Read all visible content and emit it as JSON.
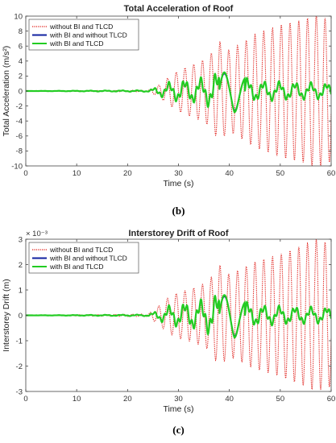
{
  "chart_data": [
    {
      "type": "line",
      "title": "Total Acceleration of Roof",
      "xlabel": "Time (s)",
      "ylabel": "Total Acceleration (m/s²)",
      "xlim": [
        0,
        60
      ],
      "ylim": [
        -10,
        10
      ],
      "x_ticks": [
        "0",
        "10",
        "20",
        "30",
        "40",
        "50",
        "60"
      ],
      "y_ticks": [
        "-10",
        "-8",
        "-6",
        "-4",
        "-2",
        "0",
        "2",
        "4",
        "6",
        "8",
        "10"
      ],
      "grid": false,
      "legend_position": "top-left",
      "caption": "(b)",
      "series": [
        {
          "name": "without BI and TLCD",
          "color": "#e0201b",
          "style": "dotted",
          "envelope": {
            "t": [
              0,
              24,
              26,
              28,
              30,
              32,
              34,
              36,
              38,
              40,
              42,
              45,
              50,
              55,
              57,
              60
            ],
            "amp": [
              0,
              0.1,
              0.7,
              1.8,
              2.7,
              3.3,
              3.8,
              4.6,
              6.6,
              5.4,
              6.2,
              7.5,
              8.8,
              9.6,
              10.2,
              9.4
            ]
          }
        },
        {
          "name": "with BI and without TLCD",
          "color": "#1020a0",
          "style": "solid"
        },
        {
          "name": "with BI and TLCD",
          "color": "#22cc22",
          "style": "solid",
          "envelope": {
            "t": [
              0,
              24,
              26,
              28,
              30,
              32,
              34,
              36,
              38,
              39,
              40,
              41,
              42,
              45,
              50,
              55,
              60
            ],
            "amp": [
              0,
              0.1,
              0.6,
              1.1,
              1.4,
              1.5,
              1.6,
              2.0,
              2.6,
              2.5,
              2.2,
              2.9,
              2.0,
              1.3,
              1.2,
              1.1,
              1.0
            ]
          }
        }
      ]
    },
    {
      "type": "line",
      "title": "Interstorey Drift of Roof",
      "xlabel": "Time (s)",
      "ylabel": "Interstorey Drift (m)",
      "y_multiplier": "× 10⁻³",
      "xlim": [
        0,
        60
      ],
      "ylim": [
        -3,
        3
      ],
      "x_ticks": [
        "0",
        "10",
        "20",
        "30",
        "40",
        "50",
        "60"
      ],
      "y_ticks": [
        "-3",
        "-2",
        "-1",
        "0",
        "1",
        "2",
        "3"
      ],
      "grid": false,
      "legend_position": "top-left",
      "caption": "(c)",
      "series": [
        {
          "name": "without BI and TLCD",
          "color": "#e0201b",
          "style": "dotted",
          "envelope": {
            "t": [
              0,
              24,
              26,
              28,
              30,
              32,
              34,
              36,
              38,
              40,
              42,
              45,
              50,
              55,
              57,
              60
            ],
            "amp": [
              0,
              0.05,
              0.35,
              0.7,
              0.9,
              1.0,
              1.15,
              1.35,
              2.0,
              1.6,
              1.8,
              2.1,
              2.4,
              2.8,
              3.0,
              2.8
            ]
          }
        },
        {
          "name": "with BI and without TLCD",
          "color": "#1020a0",
          "style": "solid"
        },
        {
          "name": "with BI and TLCD",
          "color": "#22cc22",
          "style": "solid",
          "envelope": {
            "t": [
              0,
              24,
              26,
              28,
              30,
              32,
              34,
              36,
              38,
              39,
              40,
              41,
              42,
              45,
              50,
              55,
              60
            ],
            "amp": [
              0,
              0.03,
              0.2,
              0.35,
              0.45,
              0.5,
              0.55,
              0.7,
              0.85,
              0.8,
              0.75,
              0.9,
              0.6,
              0.4,
              0.35,
              0.32,
              0.3
            ]
          }
        }
      ]
    }
  ]
}
